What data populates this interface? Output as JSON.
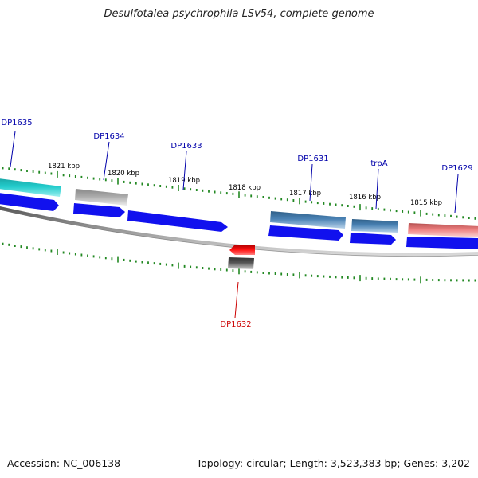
{
  "header": {
    "title": "Desulfotalea psychrophila LSv54, complete genome"
  },
  "footer": {
    "accession": "Accession: NC_006138",
    "summary": "Topology: circular; Length: 3,523,383 bp; Genes: 3,202"
  },
  "scale": {
    "unit": "kbp",
    "tick_labels": [
      "1821 kbp",
      "1820 kbp",
      "1819 kbp",
      "1818 kbp",
      "1817 kbp",
      "1816 kbp",
      "1815 kbp"
    ]
  },
  "genes": [
    {
      "name": "DP1635",
      "strand": "forward",
      "color": "#22c9c9"
    },
    {
      "name": "DP1634",
      "strand": "forward",
      "color": "#aaaaaa"
    },
    {
      "name": "DP1633",
      "strand": "forward",
      "color": "#1111dd"
    },
    {
      "name": "DP1632",
      "strand": "reverse",
      "color": "#ee1111"
    },
    {
      "name": "DP1631",
      "strand": "forward",
      "color": "#4a82b4"
    },
    {
      "name": "trpA",
      "strand": "forward",
      "color": "#4a82b4"
    },
    {
      "name": "DP1629",
      "strand": "forward",
      "color": "#ee8080"
    }
  ],
  "colors": {
    "forward_label": "#0000aa",
    "reverse_label": "#cc0000",
    "tick": "#228822",
    "backbone": "#888888",
    "cds": "#1111ee"
  }
}
